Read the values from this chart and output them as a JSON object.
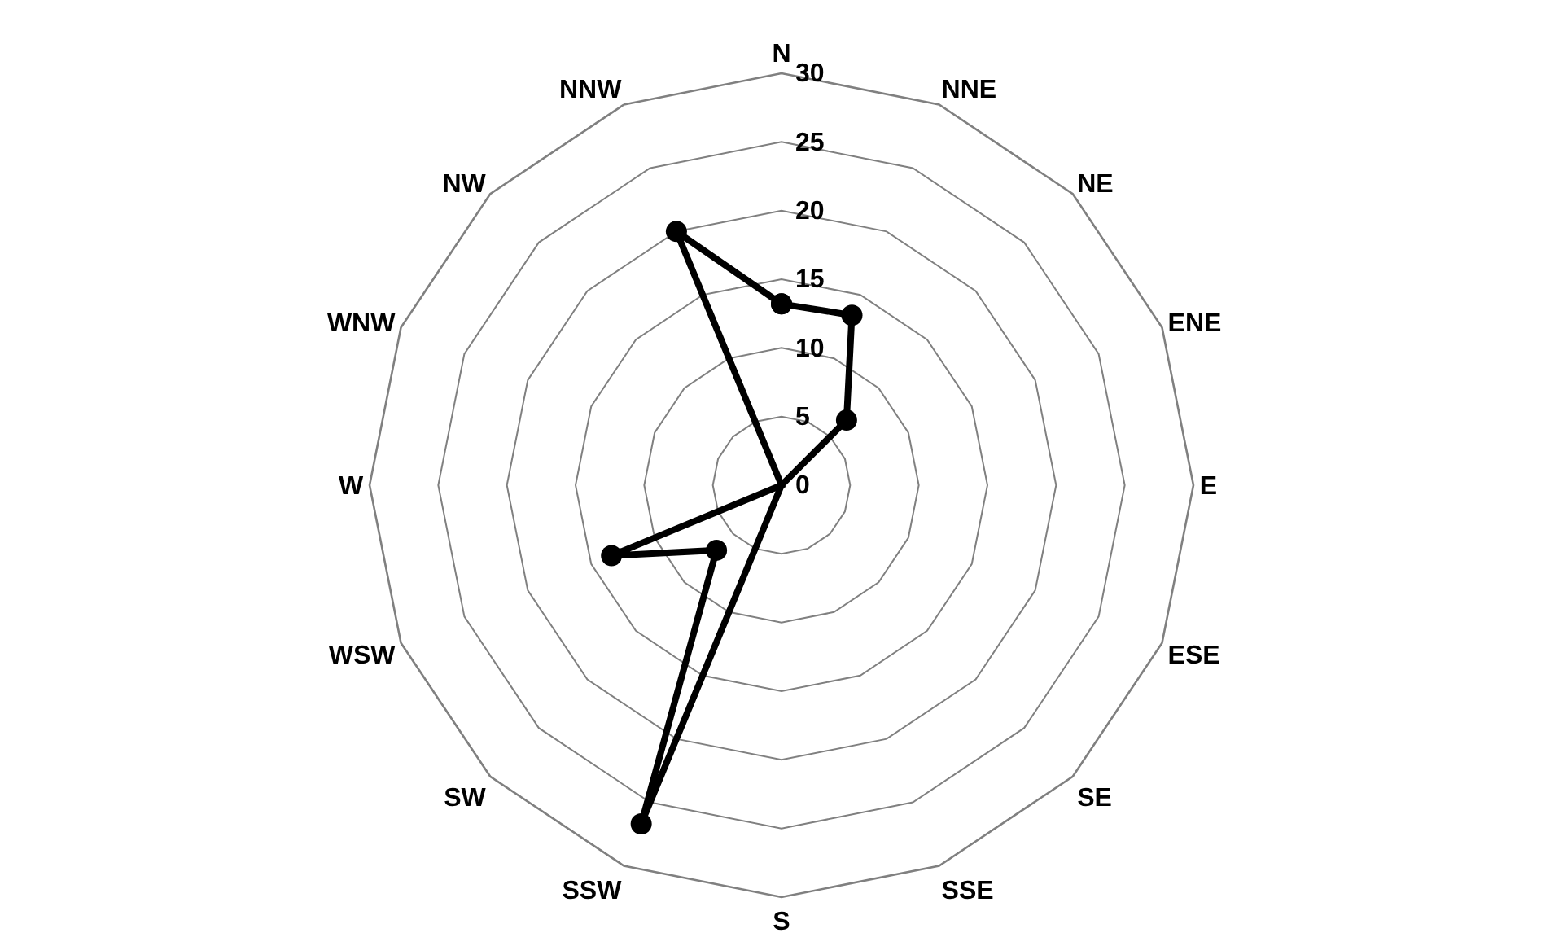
{
  "chart_data": {
    "type": "radar",
    "categories": [
      "N",
      "NNE",
      "NE",
      "ENE",
      "E",
      "ESE",
      "SE",
      "SSE",
      "S",
      "SSW",
      "SW",
      "WSW",
      "W",
      "WNW",
      "NW",
      "NNW"
    ],
    "series": [
      {
        "color": "#000000",
        "values": [
          13.2,
          13.4,
          6.7,
          0,
          0,
          0,
          0,
          0,
          0,
          26.7,
          6.7,
          13.4,
          0,
          0,
          0,
          20
        ]
      }
    ],
    "ylim": [
      0,
      30
    ],
    "yticks": [
      0,
      5,
      10,
      15,
      20,
      25,
      30
    ],
    "grid": true,
    "legend": false,
    "marker": "circle",
    "line_style": "solid"
  }
}
